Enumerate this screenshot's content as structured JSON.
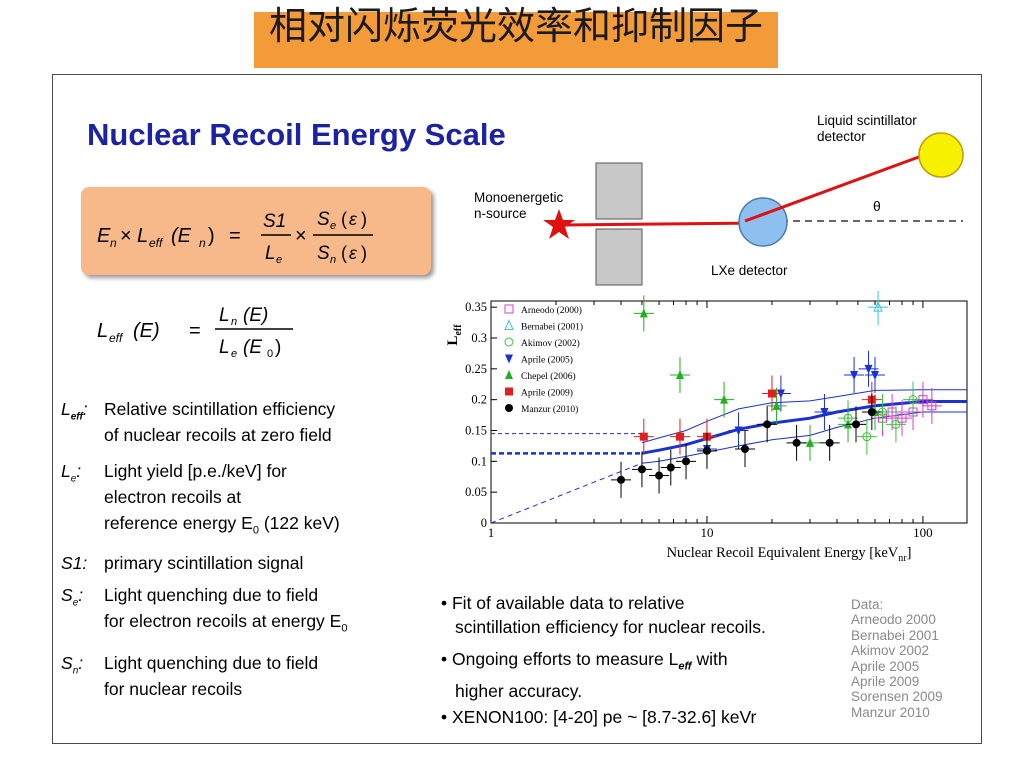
{
  "banner": {
    "title": "相对闪烁荧光效率和抑制因子"
  },
  "slide": {
    "title": "Nuclear Recoil Energy Scale",
    "formula1": {
      "En": "E",
      "n_sub": "n",
      "times": "×",
      "L": "L",
      "eff": "eff",
      "paren_E": "(E",
      "paren_close": ")",
      "equals": "=",
      "S1": "S1",
      "Le": "L",
      "e_sub": "e",
      "Se": "S",
      "Sn": "S",
      "eps": "ε"
    },
    "formula2": {
      "Leff": "L",
      "eff": "eff",
      "E": "(E)",
      "equals": "=",
      "Ln": "L",
      "n_sub": "n",
      "Le": "L",
      "e_sub": "e",
      "E0": "(E",
      "zero": "0",
      "close": ")"
    },
    "definitions": [
      {
        "symbol": "L",
        "sub": "eff",
        "colon": ":",
        "lines": [
          "Relative scintillation efficiency",
          "of nuclear recoils at zero field"
        ]
      },
      {
        "symbol": "L",
        "sub": "e",
        "colon": ":",
        "lines": [
          "Light yield [p.e./keV] for",
          "electron recoils at",
          "reference energy E",
          "0",
          " (122 keV)"
        ]
      },
      {
        "symbol": "S1",
        "sub": "",
        "colon": ":",
        "lines": [
          "primary scintillation signal"
        ]
      },
      {
        "symbol": "S",
        "sub": "e",
        "colon": ":",
        "lines": [
          "Light quenching due to field",
          "for electron recoils at energy E",
          "0"
        ]
      },
      {
        "symbol": "S",
        "sub": "n",
        "colon": ":",
        "lines": [
          "Light quenching due to field",
          "for nuclear recoils"
        ]
      }
    ],
    "diagram": {
      "source_label_1": "Monoenergetic",
      "source_label_2": "n-source",
      "lxe_label": "LXe detector",
      "liquid_label_1": "Liquid scintillator",
      "liquid_label_2": "detector",
      "theta": "θ"
    },
    "bullets": [
      {
        "lines": [
          "• Fit of available data to relative",
          "scintillation efficiency for nuclear recoils."
        ]
      },
      {
        "lines": [
          "• Ongoing efforts to measure L",
          "eff",
          " with",
          "higher accuracy."
        ]
      },
      {
        "lines": [
          "• XENON100: [4-20] pe ~ [8.7-32.6] keVr"
        ]
      }
    ],
    "data_list": [
      "Data:",
      "Arneodo 2000",
      "Bernabei 2001",
      "Akimov 2002",
      "Aprile 2005",
      "Aprile 2009",
      "Sorensen 2009",
      "Manzur 2010"
    ]
  },
  "chart_data": {
    "type": "scatter",
    "title": "",
    "xlabel": "Nuclear Recoil Equivalent Energy [keV",
    "xlabel_sub": "nr",
    "xlabel_close": "]",
    "ylabel": "L",
    "ylabel_sub": "eff",
    "xscale": "log",
    "xlim": [
      1,
      160
    ],
    "ylim": [
      0,
      0.36
    ],
    "xticks": [
      1,
      10,
      100
    ],
    "xtick_labels": [
      "1",
      "10",
      "100"
    ],
    "yticks": [
      0,
      0.05,
      0.1,
      0.15,
      0.2,
      0.25,
      0.3,
      0.35
    ],
    "ytick_labels": [
      "0",
      "0.05",
      "0.1",
      "0.15",
      "0.2",
      "0.25",
      "0.3",
      "0.35"
    ],
    "legend_position": "top-left",
    "series": [
      {
        "name": "Arneodo (2000)",
        "color": "#d040d0",
        "marker": "square-open",
        "points": [
          [
            65,
            0.17
          ],
          [
            72,
            0.18
          ],
          [
            80,
            0.17
          ],
          [
            90,
            0.18
          ],
          [
            100,
            0.2
          ],
          [
            110,
            0.19
          ]
        ]
      },
      {
        "name": "Bernabei (2001)",
        "color": "#40c0e0",
        "marker": "triangle-open",
        "points": [
          [
            62,
            0.35
          ]
        ]
      },
      {
        "name": "Akimov (2002)",
        "color": "#40c040",
        "marker": "circle-open",
        "points": [
          [
            45,
            0.17
          ],
          [
            55,
            0.14
          ],
          [
            65,
            0.18
          ],
          [
            75,
            0.16
          ],
          [
            90,
            0.2
          ]
        ]
      },
      {
        "name": "Aprile (2005)",
        "color": "#1a30d0",
        "marker": "triangle-down",
        "points": [
          [
            10,
            0.12
          ],
          [
            14,
            0.15
          ],
          [
            22,
            0.21
          ],
          [
            35,
            0.18
          ],
          [
            48,
            0.24
          ],
          [
            56,
            0.25
          ],
          [
            60,
            0.24
          ]
        ]
      },
      {
        "name": "Chepel (2006)",
        "color": "#20b020",
        "marker": "triangle",
        "points": [
          [
            5.1,
            0.34
          ],
          [
            7.5,
            0.24
          ],
          [
            12,
            0.2
          ],
          [
            21,
            0.19
          ],
          [
            30,
            0.13
          ],
          [
            45,
            0.16
          ],
          [
            60,
            0.18
          ]
        ]
      },
      {
        "name": "Aprile (2009)",
        "color": "#e02020",
        "marker": "square",
        "points": [
          [
            5.1,
            0.14
          ],
          [
            7.5,
            0.14
          ],
          [
            10,
            0.14
          ],
          [
            20,
            0.21
          ],
          [
            58,
            0.2
          ]
        ]
      },
      {
        "name": "Manzur (2010)",
        "color": "#000000",
        "marker": "circle",
        "points": [
          [
            4,
            0.07
          ],
          [
            5,
            0.087
          ],
          [
            6,
            0.077
          ],
          [
            6.8,
            0.09
          ],
          [
            8,
            0.1
          ],
          [
            10,
            0.117
          ],
          [
            15,
            0.12
          ],
          [
            19,
            0.16
          ],
          [
            26,
            0.13
          ],
          [
            37,
            0.13
          ],
          [
            49,
            0.16
          ],
          [
            58,
            0.18
          ]
        ]
      }
    ],
    "fit_band": {
      "color": "#1a30d0",
      "x": [
        5,
        6,
        8,
        10,
        14,
        20,
        30,
        40,
        60,
        100,
        160
      ],
      "mean": [
        0.113,
        0.118,
        0.127,
        0.137,
        0.152,
        0.162,
        0.17,
        0.18,
        0.19,
        0.197,
        0.197
      ],
      "upper": [
        0.13,
        0.138,
        0.15,
        0.165,
        0.185,
        0.195,
        0.198,
        0.205,
        0.215,
        0.216,
        0.216
      ],
      "lower": [
        0.097,
        0.1,
        0.108,
        0.115,
        0.125,
        0.135,
        0.142,
        0.155,
        0.17,
        0.18,
        0.18
      ],
      "flat_level_upper": 0.145,
      "flat_level_mean": 0.113
    }
  }
}
